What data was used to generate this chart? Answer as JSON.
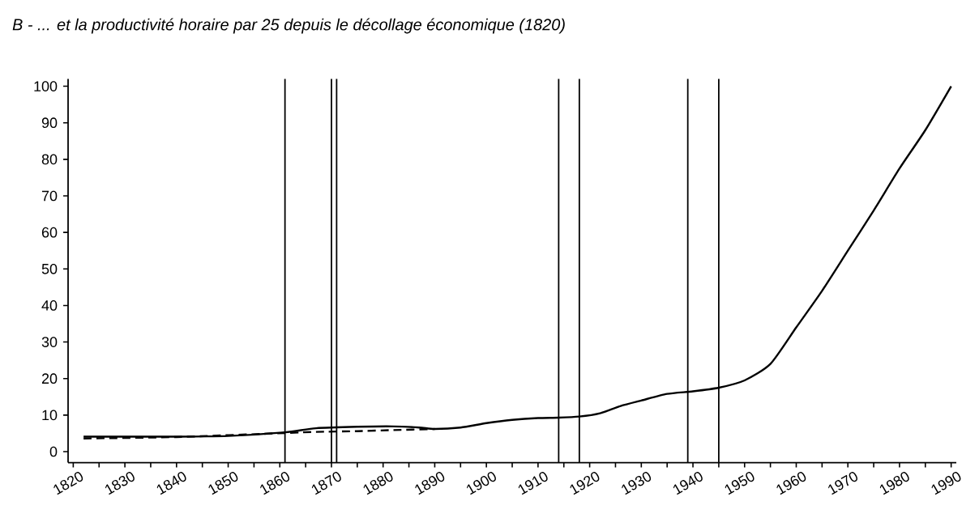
{
  "chart_data": {
    "type": "line",
    "title": "*B - ... et la productivité horaire par 25 depuis le décollage économique (1820)*",
    "series": [
      {
        "color": "#000000",
        "line_style": "solid",
        "x": [
          1822,
          1830,
          1840,
          1850,
          1861,
          1867,
          1875,
          1882,
          1887,
          1890,
          1895,
          1900,
          1905,
          1910,
          1914,
          1918,
          1922,
          1926,
          1930,
          1935,
          1940,
          1945,
          1950,
          1955,
          1960,
          1965,
          1970,
          1975,
          1980,
          1985,
          1990
        ],
        "values": [
          4.1,
          4.1,
          4.1,
          4.3,
          5.3,
          6.4,
          6.8,
          6.9,
          6.6,
          6.2,
          6.6,
          7.8,
          8.7,
          9.2,
          9.3,
          9.6,
          10.5,
          12.5,
          14,
          15.8,
          16.5,
          17.5,
          19.5,
          24,
          34,
          44,
          55,
          66,
          77.5,
          88,
          100
        ]
      },
      {
        "color": "#000000",
        "line_style": "dashed",
        "x": [
          1822,
          1840,
          1861,
          1867,
          1875,
          1882,
          1890
        ],
        "values": [
          3.6,
          4.0,
          5.1,
          5.4,
          5.6,
          5.9,
          6.2
        ]
      }
    ],
    "xlim": [
      1819,
      1991
    ],
    "ylim": [
      -3,
      102
    ],
    "xticks": [
      1820,
      {
        "value": 1825,
        "label": null
      },
      1830,
      {
        "value": 1835,
        "label": null
      },
      1840,
      {
        "value": 1845,
        "label": null
      },
      1850,
      {
        "value": 1855,
        "label": null
      },
      1860,
      {
        "value": 1865,
        "label": null
      },
      1870,
      {
        "value": 1875,
        "label": null
      },
      1880,
      {
        "value": 1885,
        "label": null
      },
      1890,
      {
        "value": 1895,
        "label": null
      },
      1900,
      {
        "value": 1905,
        "label": null
      },
      1910,
      {
        "value": 1915,
        "label": null
      },
      1920,
      {
        "value": 1925,
        "label": null
      },
      1930,
      {
        "value": 1935,
        "label": null
      },
      1940,
      {
        "value": 1945,
        "label": null
      },
      1950,
      {
        "value": 1955,
        "label": null
      },
      1960,
      {
        "value": 1965,
        "label": null
      },
      1970,
      {
        "value": 1975,
        "label": null
      },
      1980,
      {
        "value": 1985,
        "label": null
      },
      1990
    ],
    "yticks": [
      0,
      10,
      20,
      30,
      40,
      50,
      60,
      70,
      80,
      90,
      100
    ],
    "ref_lines": [
      {
        "axis": "x",
        "value": 1861
      },
      {
        "axis": "x",
        "value": 1870
      },
      {
        "axis": "x",
        "value": 1871
      },
      {
        "axis": "x",
        "value": 1914
      },
      {
        "axis": "x",
        "value": 1918
      },
      {
        "axis": "x",
        "value": 1939
      },
      {
        "axis": "x",
        "value": 1945
      }
    ],
    "grid": false,
    "marker": "none"
  }
}
